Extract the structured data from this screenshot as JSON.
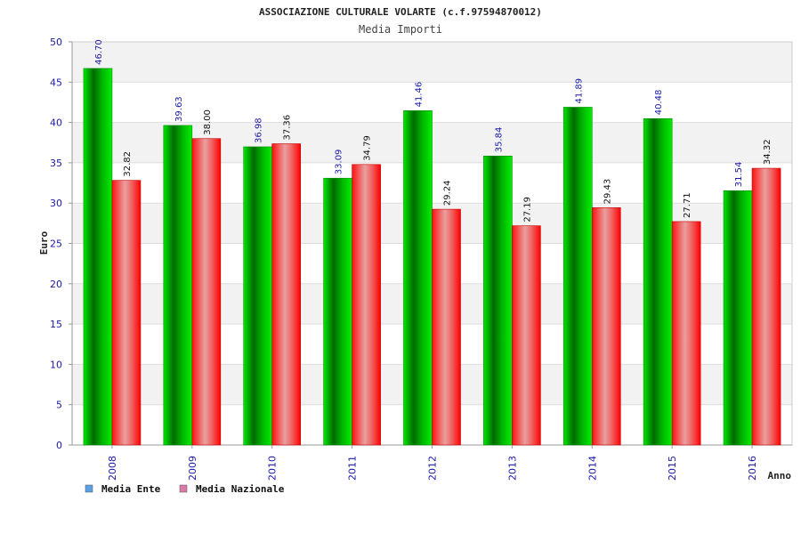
{
  "chart_data": {
    "type": "bar",
    "title": "ASSOCIAZIONE CULTURALE VOLARTE (c.f.97594870012)",
    "subtitle": "Media Importi",
    "xlabel": "Anno",
    "ylabel": "Euro",
    "ylim": [
      0,
      50
    ],
    "yticks": [
      0,
      5,
      10,
      15,
      20,
      25,
      30,
      35,
      40,
      45,
      50
    ],
    "categories": [
      "2008",
      "2009",
      "2010",
      "2011",
      "2012",
      "2013",
      "2014",
      "2015",
      "2016"
    ],
    "series": [
      {
        "name": "Media Ente",
        "values": [
          46.7,
          39.63,
          36.98,
          33.09,
          41.46,
          35.84,
          41.89,
          40.48,
          31.54
        ],
        "labels": [
          "46.70",
          "39.63",
          "36.98",
          "33.09",
          "41.46",
          "35.84",
          "41.89",
          "40.48",
          "31.54"
        ]
      },
      {
        "name": "Media Nazionale",
        "values": [
          32.82,
          38.0,
          37.36,
          34.79,
          29.24,
          27.19,
          29.43,
          27.71,
          34.32
        ],
        "labels": [
          "32.82",
          "38.00",
          "37.36",
          "34.79",
          "29.24",
          "27.19",
          "29.43",
          "27.71",
          "34.32"
        ]
      }
    ],
    "grid": true,
    "legend_position": "bottom-left",
    "colors": {
      "ente_bar": "#00c800",
      "nazionale_bar": "#ff1a1a",
      "ente_legend": "#5aa0e6",
      "nazionale_legend": "#d97aa8",
      "band": "#f2f2f2"
    }
  }
}
